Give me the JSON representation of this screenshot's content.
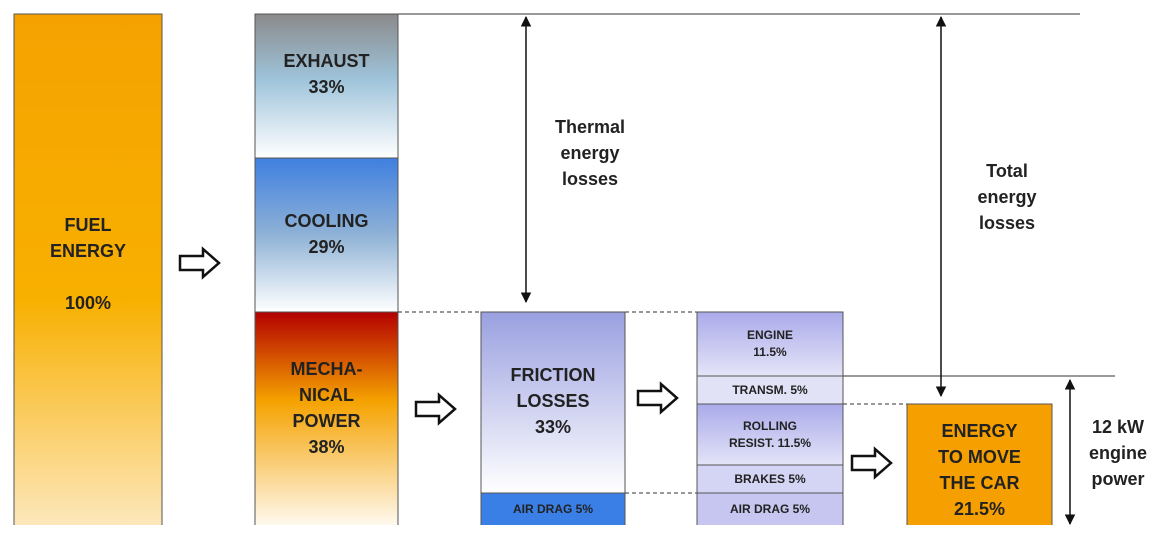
{
  "fuel": {
    "title": "FUEL\nENERGY",
    "value": "100%"
  },
  "exhaust": {
    "title": "EXHAUST",
    "value": "33%"
  },
  "cooling": {
    "title": "COOLING",
    "value": "29%"
  },
  "mechanical": {
    "title": "MECHA-\nNICAL\nPOWER",
    "value": "38%"
  },
  "friction": {
    "title": "FRICTION\nLOSSES",
    "value": "33%"
  },
  "air_drag_left": "AIR DRAG 5%",
  "breakdown": {
    "engine": "ENGINE\n11.5%",
    "transmission": "TRANSM. 5%",
    "rolling": "ROLLING\nRESIST. 11.5%",
    "brakes": "BRAKES 5%",
    "air_drag": "AIR DRAG 5%"
  },
  "energy_move": {
    "title": "ENERGY\nTO MOVE\nTHE CAR",
    "value": "21.5%"
  },
  "labels": {
    "thermal": "Thermal\nenergy\nlosses",
    "total": "Total\nenergy\nlosses",
    "engine_power": "12 kW\nengine\npower"
  },
  "colors": {
    "fuel_top": "#f5a200",
    "fuel_bottom": "#fde9c2",
    "exhaust_top": "#8a8a8a",
    "exhaust_bottom": "#ffffff",
    "cooling_top": "#3f7fe0",
    "cooling_bottom": "#ffffff",
    "mech_top": "#b30000",
    "mech_mid": "#f5a200",
    "mech_bottom": "#ffffff",
    "friction_top": "#9aa0e0",
    "friction_bottom": "#ffffff",
    "lavender": "#b7b7ec",
    "air_drag_blue": "#3a7fe6",
    "energy_orange": "#f5a000"
  }
}
